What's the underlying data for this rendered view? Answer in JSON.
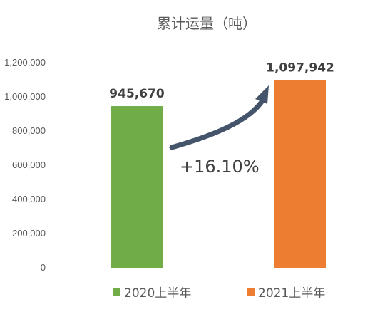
{
  "chart_data": {
    "type": "bar",
    "title": "累计运量（吨）",
    "categories": [
      "2020上半年",
      "2021上半年"
    ],
    "values": [
      945670,
      1097942
    ],
    "data_labels": [
      "945,670",
      "1,097,942"
    ],
    "colors": [
      "#70ad47",
      "#ed7d31"
    ],
    "ylim": [
      0,
      1200000
    ],
    "y_ticks": [
      0,
      200000,
      400000,
      600000,
      800000,
      1000000,
      1200000
    ],
    "y_tick_labels": [
      "0",
      "200,000",
      "400,000",
      "600,000",
      "800,000",
      "1,000,000",
      "1,200,000"
    ],
    "grid": false,
    "legend_position": "bottom",
    "annotation": {
      "text": "+16.10%",
      "arrow_color": "#44546a"
    }
  }
}
